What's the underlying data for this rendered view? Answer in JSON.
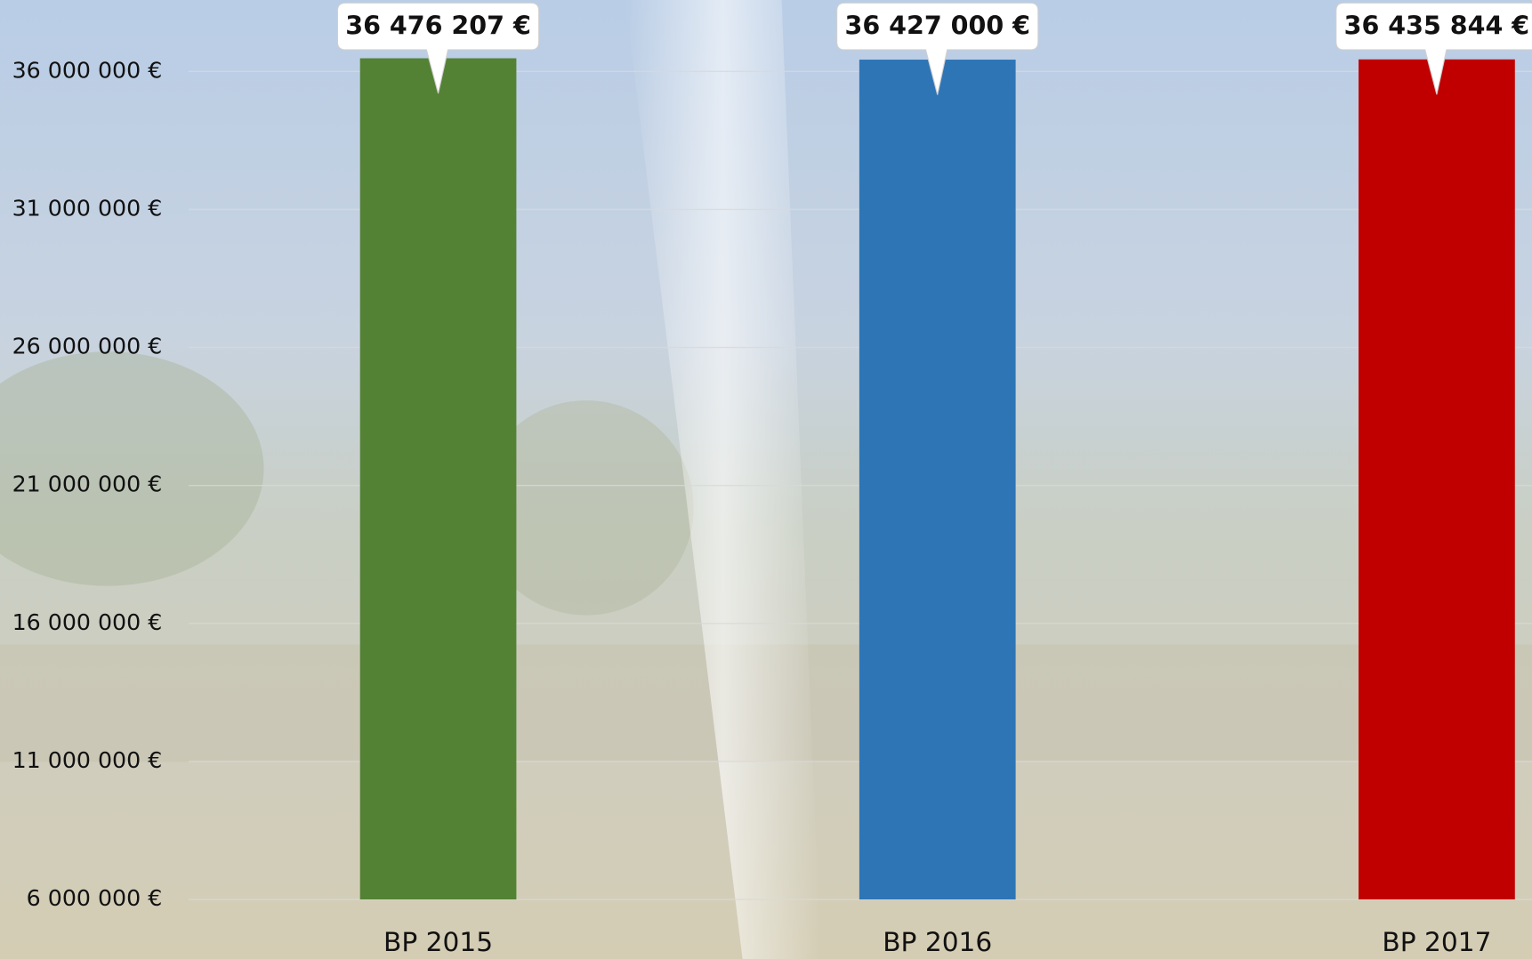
{
  "chart_data": {
    "type": "bar",
    "categories": [
      "BP 2015",
      "BP 2016",
      "BP 2017"
    ],
    "values": [
      36476207,
      36427000,
      36435844
    ],
    "value_labels": [
      "36 476 207 €",
      "36 427 000 €",
      "36 435 844 €"
    ],
    "colors": [
      "#548235",
      "#2e75b6",
      "#c00000"
    ],
    "ylim": [
      6000000,
      36500000
    ],
    "yticks": [
      {
        "value": 6000000,
        "label": "6 000 000 €"
      },
      {
        "value": 11000000,
        "label": "11 000 000 €"
      },
      {
        "value": 16000000,
        "label": "16 000 000 €"
      },
      {
        "value": 21000000,
        "label": "21 000 000 €"
      },
      {
        "value": 26000000,
        "label": "26 000 000 €"
      },
      {
        "value": 31000000,
        "label": "31 000 000 €"
      },
      {
        "value": 36000000,
        "label": "36 000 000 €"
      }
    ],
    "grid": true
  }
}
